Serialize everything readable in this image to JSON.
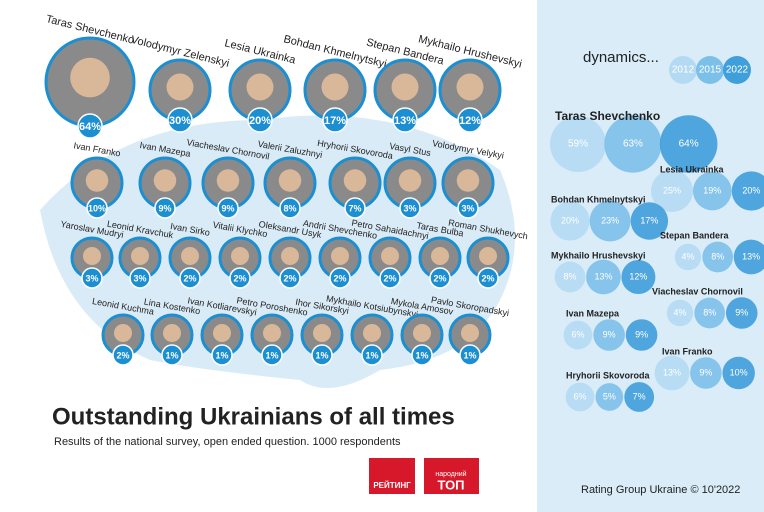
{
  "header": {
    "title": "Outstanding Ukrainians of all times",
    "subtitle": "Results of the national survey, open ended question. 1000 respondents"
  },
  "people": [
    [
      {
        "name": "Taras Shevchenko",
        "share": "64%"
      },
      {
        "name": "Volodymyr Zelenskyi",
        "share": "30%"
      },
      {
        "name": "Lesia Ukrainka",
        "share": "20%"
      },
      {
        "name": "Bohdan Khmelnytskyi",
        "share": "17%"
      },
      {
        "name": "Stepan Bandera",
        "share": "13%"
      },
      {
        "name": "Mykhailo Hrushevskyi",
        "share": "12%"
      }
    ],
    [
      {
        "name": "Ivan Franko",
        "share": "10%"
      },
      {
        "name": "Ivan Mazepa",
        "share": "9%"
      },
      {
        "name": "Viacheslav Chornovil",
        "share": "9%"
      },
      {
        "name": "Valerii Zaluzhnyi",
        "share": "8%"
      },
      {
        "name": "Hryhorii Skovoroda",
        "share": "7%"
      },
      {
        "name": "Vasyl Stus",
        "share": "3%"
      },
      {
        "name": "Volodymyr Velykyi",
        "share": "3%"
      }
    ],
    [
      {
        "name": "Yaroslav Mudryi",
        "share": "3%"
      },
      {
        "name": "Leonid Kravchuk",
        "share": "3%"
      },
      {
        "name": "Ivan Sirko",
        "share": "2%"
      },
      {
        "name": "Vitalii Klychko",
        "share": "2%"
      },
      {
        "name": "Oleksandr Usyk",
        "share": "2%"
      },
      {
        "name": "Andrii Shevchenko",
        "share": "2%"
      },
      {
        "name": "Petro Sahaidachnyi",
        "share": "2%"
      },
      {
        "name": "Taras Bulba",
        "share": "2%"
      },
      {
        "name": "Roman Shukhevych",
        "share": "2%"
      }
    ],
    [
      {
        "name": "Leonid Kuchma",
        "share": "2%"
      },
      {
        "name": "Lina Kostenko",
        "share": "1%"
      },
      {
        "name": "Ivan Kotliarevskyi",
        "share": "1%"
      },
      {
        "name": "Petro Poroshenko",
        "share": "1%"
      },
      {
        "name": "Ihor Sikorskyi",
        "share": "1%"
      },
      {
        "name": "Mykhailo Kotsiubynskyi",
        "share": "1%"
      },
      {
        "name": "Mykola Amosov",
        "share": "1%"
      },
      {
        "name": "Pavlo Skoropadskyi",
        "share": "1%"
      }
    ]
  ],
  "dynamics": {
    "title": "dynamics...",
    "years": [
      "2012",
      "2015",
      "2022"
    ],
    "entries": [
      {
        "name": "Taras Shevchenko",
        "shares": [
          "59%",
          "63%",
          "64%"
        ]
      },
      {
        "name": "Lesia Ukrainka",
        "shares": [
          "25%",
          "19%",
          "20%"
        ]
      },
      {
        "name": "Bohdan Khmelnytskyi",
        "shares": [
          "20%",
          "23%",
          "17%"
        ]
      },
      {
        "name": "Stepan Bandera",
        "shares": [
          "4%",
          "8%",
          "13%"
        ]
      },
      {
        "name": "Mykhailo Hrushevskyi",
        "shares": [
          "8%",
          "13%",
          "12%"
        ]
      },
      {
        "name": "Viacheslav Chornovil",
        "shares": [
          "4%",
          "8%",
          "9%"
        ]
      },
      {
        "name": "Ivan Mazepa",
        "shares": [
          "6%",
          "9%",
          "9%"
        ]
      },
      {
        "name": "Ivan Franko",
        "shares": [
          "13%",
          "9%",
          "10%"
        ]
      },
      {
        "name": "Hryhorii Skovoroda",
        "shares": [
          "6%",
          "5%",
          "7%"
        ]
      }
    ]
  },
  "logos": {
    "rating": "РЕЙТИНГ",
    "top_small": "народний",
    "top": "ТОП"
  },
  "footer": {
    "source": "Rating Group Ukraine © 10'2022"
  }
}
